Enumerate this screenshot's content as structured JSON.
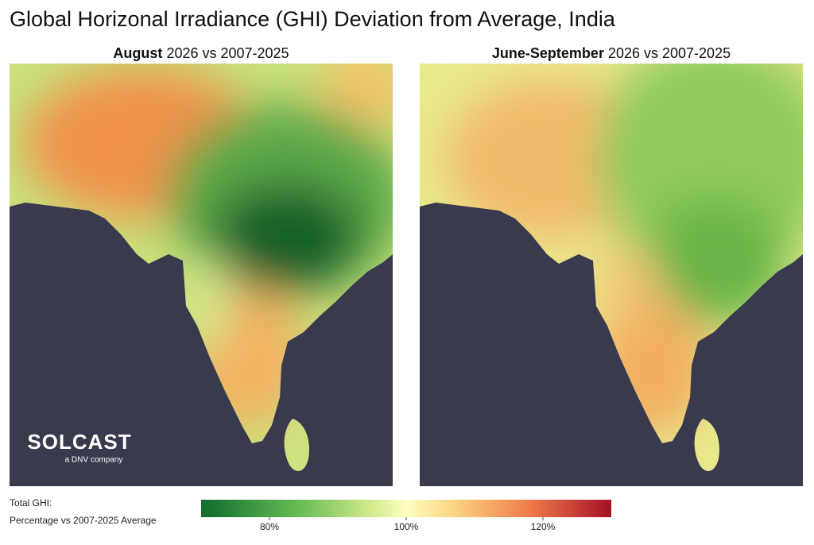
{
  "title": "Global Horizonal Irradiance (GHI) Deviation from Average, India",
  "panels": [
    {
      "title_bold": "August",
      "title_rest": "2026 vs 2007-2025"
    },
    {
      "title_bold": "June-September",
      "title_rest": "2026 vs 2007-2025"
    }
  ],
  "logo": {
    "name": "SOLCAST",
    "tagline": "a DNV company"
  },
  "legend": {
    "label_lines": [
      "Total GHI:",
      "Percentage vs 2007-2025 Average"
    ],
    "range": [
      70,
      130
    ],
    "ticks": [
      {
        "value": 80,
        "label": "80%"
      },
      {
        "value": 100,
        "label": "100%"
      },
      {
        "value": 120,
        "label": "120%"
      }
    ]
  }
}
